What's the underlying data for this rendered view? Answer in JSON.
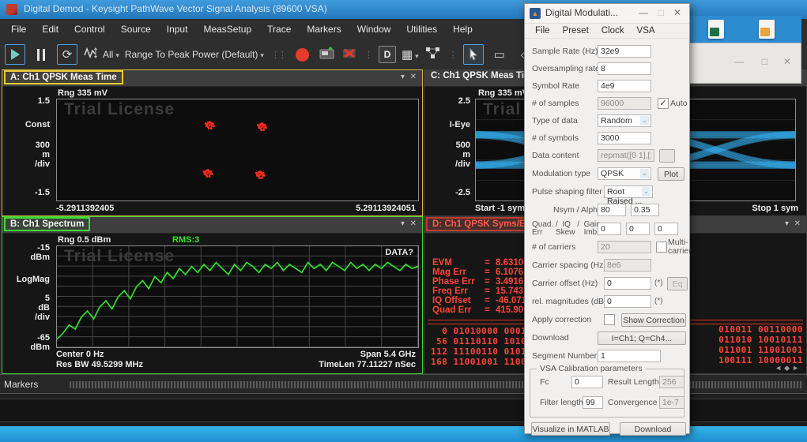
{
  "app": {
    "title": "Digital Demod - Keysight PathWave Vector Signal Analysis (89600 VSA)"
  },
  "menu": [
    "File",
    "Edit",
    "Control",
    "Source",
    "Input",
    "MeasSetup",
    "Trace",
    "Markers",
    "Window",
    "Utilities",
    "Help"
  ],
  "toolbar": {
    "all_label": "All",
    "range_label": "Range To Peak Power (Default)",
    "d_label": "D"
  },
  "panes": {
    "a": {
      "title": "A: Ch1 QPSK Meas Time",
      "rng": "Rng 335 mV",
      "y_top": "1.5",
      "y_mid": "Const",
      "y_scale": [
        "300",
        "m",
        "/div"
      ],
      "y_bot": "-1.5",
      "x_left": "-5.2911392405",
      "x_right": "5.29113924051",
      "watermark": "Trial License"
    },
    "b": {
      "title": "B: Ch1 Spectrum",
      "rng": "Rng 0.5 dBm",
      "rms": "RMS:3",
      "data_flag": "DATA?",
      "y_top": [
        "-15",
        "dBm"
      ],
      "y_mid": "LogMag",
      "y_scale": [
        "5",
        "dB",
        "/div"
      ],
      "y_bot": [
        "-65",
        "dBm"
      ],
      "bl1": "Center 0  Hz",
      "bl2": "Res BW 49.5299 MHz",
      "br1": "Span 5.4 GHz",
      "br2": "TimeLen 77.11227 nSec",
      "watermark": "Trial License"
    },
    "c": {
      "title": "C: Ch1 QPSK Meas Time",
      "rng": "Rng 335 mV",
      "y_top": "2.5",
      "y_mid": "I-Eye",
      "y_scale": [
        "500",
        "m",
        "/div"
      ],
      "y_bot": "-2.5",
      "x_left": "Start -1  sym",
      "x_right": "Stop 1  sym",
      "watermark": "Trial Licen"
    },
    "d": {
      "title": "D: Ch1 QPSK Syms/Errs",
      "errors": [
        {
          "name": "EVM",
          "value": "8.6310",
          "unit": "%"
        },
        {
          "name": "Mag Err",
          "value": "6.1076",
          "unit": "%"
        },
        {
          "name": "Phase Err",
          "value": "3.4916",
          "unit": ""
        },
        {
          "name": "Freq Err",
          "value": "15.743",
          "unit": ""
        },
        {
          "name": "IQ Offset",
          "value": "-46.071",
          "unit": ""
        },
        {
          "name": "Quad Err",
          "value": "415.90",
          "unit": "m"
        }
      ],
      "bits_left": [
        "  0 01010000 0001",
        " 56 01110110 1010",
        "112 11100110 0101",
        "168 11001001 1100"
      ],
      "bits_right": [
        "010011 00110000",
        "011010 10010111",
        "011001 11001001",
        "100111 10000011"
      ]
    }
  },
  "markers_panel": {
    "label": "Markers"
  },
  "dialog": {
    "title": "Digital Modulati...",
    "menu": [
      "File",
      "Preset",
      "Clock",
      "VSA"
    ],
    "fields": {
      "sample_rate": {
        "label": "Sample Rate (Hz)",
        "value": "32e9"
      },
      "oversampling": {
        "label": "Oversampling rate",
        "value": "8"
      },
      "symbol_rate": {
        "label": "Symbol Rate",
        "value": "4e9"
      },
      "num_samples": {
        "label": "# of samples",
        "value": "96000",
        "auto_label": "Auto",
        "auto_checked": true
      },
      "type_of_data": {
        "label": "Type of data",
        "value": "Random"
      },
      "num_symbols": {
        "label": "# of symbols",
        "value": "3000"
      },
      "data_content": {
        "label": "Data content",
        "value": "repmat([0 1],[1,64)"
      },
      "modulation": {
        "label": "Modulation type",
        "value": "QPSK",
        "plot_label": "Plot"
      },
      "pulse_filter": {
        "label": "Pulse shaping filter",
        "value": "Root Raised ..."
      },
      "nsym_alpha": {
        "label": "Nsym / Alpha",
        "nsym": "80",
        "alpha": "0.35"
      },
      "quad_iq_gain": {
        "label1": "Quad. /  IQ   /  Gain",
        "label2": "Err      Skew    Imb.",
        "v1": "0",
        "v2": "0",
        "v3": "0"
      },
      "num_carriers": {
        "label": "# of carriers",
        "value": "20",
        "multi_label1": "Multi-",
        "multi_label2": "carrier",
        "multi_checked": false
      },
      "carrier_spacing": {
        "label": "Carrier spacing (Hz)",
        "value": "8e6"
      },
      "carrier_offset": {
        "label": "Carrier offset (Hz)",
        "value": "0",
        "star": "(*)",
        "eq_label": "Eq"
      },
      "rel_magnitudes": {
        "label": "rel. magnitudes (dB)",
        "value": "0",
        "star": "(*)"
      },
      "apply_correction": {
        "label": "Apply correction",
        "button": "Show Correction",
        "checked": false
      },
      "download": {
        "label": "Download",
        "button": "I=Ch1; Q=Ch4..."
      },
      "segment": {
        "label": "Segment Number",
        "value": "1"
      }
    },
    "calibration": {
      "legend": "VSA Calibration parameters",
      "fc_label": "Fc",
      "fc": "0",
      "result_label": "Result Length",
      "result": "256",
      "filter_label": "Filter length",
      "filter": "99",
      "conv_label": "Convergence",
      "conv": "1e-7"
    },
    "buttons": {
      "visualize": "Visualize in MATLAB",
      "download": "Download"
    }
  },
  "chart_data": [
    {
      "type": "scatter",
      "title": "A: Ch1 QPSK Meas Time - QPSK constellation",
      "xlim": [
        -5.2911392405,
        5.29113924051
      ],
      "ylim": [
        -1.5,
        1.5
      ],
      "ylabel": "Const (300 m/div)",
      "iq_states": [
        [
          -0.75,
          0.75
        ],
        [
          0.75,
          0.75
        ],
        [
          -0.75,
          -0.75
        ],
        [
          0.75,
          -0.75
        ]
      ],
      "points_frac": [
        [
          0.42,
          0.245
        ],
        [
          0.565,
          0.26
        ],
        [
          0.415,
          0.72
        ],
        [
          0.56,
          0.735
        ]
      ],
      "color": "#ff2d1c"
    },
    {
      "type": "line",
      "title": "B: Ch1 Spectrum",
      "ylabel": "LogMag",
      "yunit": "dBm",
      "ylim": [
        -65,
        -15
      ],
      "center": "0 Hz",
      "span": "5.4 GHz",
      "rbw": "49.5299 MHz",
      "avg": "RMS:3",
      "grid": true,
      "values_dbm": [
        -61,
        -58,
        -54,
        -56,
        -50,
        -47,
        -51,
        -45,
        -42,
        -46,
        -40,
        -37,
        -41,
        -35,
        -32,
        -36,
        -30,
        -33,
        -28,
        -31,
        -26,
        -29,
        -25,
        -28,
        -24,
        -27,
        -23,
        -26,
        -29,
        -24,
        -27,
        -23,
        -25,
        -28,
        -24,
        -26,
        -23,
        -27,
        -24,
        -26,
        -28,
        -23,
        -26,
        -24,
        -27,
        -23,
        -25,
        -27,
        -23,
        -26,
        -24,
        -27,
        -24,
        -26,
        -23,
        -25,
        -27,
        -24,
        -26,
        -25
      ],
      "color": "#2ee02a"
    },
    {
      "type": "line",
      "title": "C: Ch1 QPSK Meas Time - I-Eye",
      "ylim": [
        -2.5,
        2.5
      ],
      "x_start": "-1 sym",
      "x_stop": "1 sym",
      "eye_levels": [
        0.75,
        -0.75
      ],
      "color": "#35aeee"
    }
  ]
}
